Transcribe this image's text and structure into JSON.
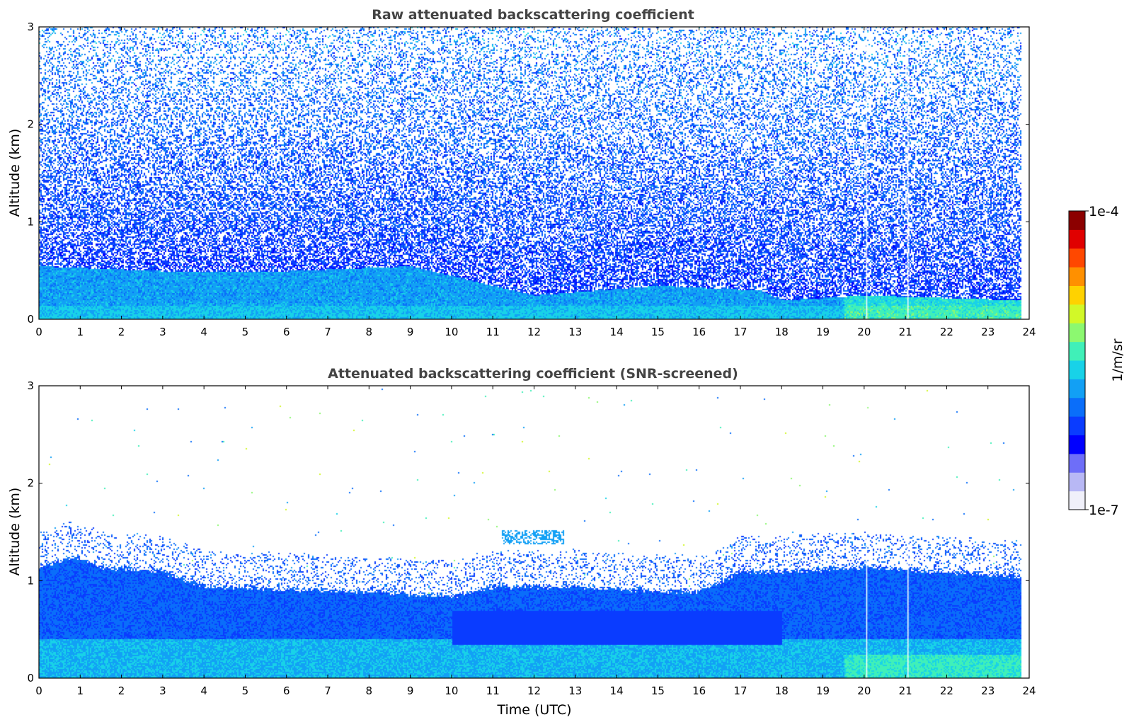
{
  "chart_data": [
    {
      "type": "heatmap",
      "id": "raw",
      "title": "Raw attenuated backscattering coefficient",
      "xlabel": "",
      "ylabel": "Altitude (km)",
      "xlim": [
        0,
        24
      ],
      "ylim": [
        0,
        3
      ],
      "xticks": [
        0,
        1,
        2,
        3,
        4,
        5,
        6,
        7,
        8,
        9,
        10,
        11,
        12,
        13,
        14,
        15,
        16,
        17,
        18,
        19,
        20,
        21,
        22,
        23,
        24
      ],
      "yticks": [
        0,
        1,
        2,
        3
      ],
      "data_end_hour": 23.8,
      "gap_hours": [
        20.05,
        21.05
      ],
      "layer_top_km": [
        [
          0,
          0.55
        ],
        [
          3,
          0.5
        ],
        [
          6,
          0.5
        ],
        [
          9,
          0.55
        ],
        [
          12,
          0.25
        ],
        [
          15,
          0.35
        ],
        [
          17.5,
          0.3
        ],
        [
          18,
          0.2
        ],
        [
          20,
          0.25
        ],
        [
          23.8,
          0.2
        ]
      ],
      "noise": "strong",
      "grid": false
    },
    {
      "type": "heatmap",
      "id": "screened",
      "title": "Attenuated backscattering coefficient (SNR-screened)",
      "xlabel": "Time (UTC)",
      "ylabel": "Altitude (km)",
      "xlim": [
        0,
        24
      ],
      "ylim": [
        0,
        3
      ],
      "xticks": [
        0,
        1,
        2,
        3,
        4,
        5,
        6,
        7,
        8,
        9,
        10,
        11,
        12,
        13,
        14,
        15,
        16,
        17,
        18,
        19,
        20,
        21,
        22,
        23,
        24
      ],
      "yticks": [
        0,
        1,
        2,
        3
      ],
      "data_end_hour": 23.8,
      "gap_hours": [
        20.05,
        21.05
      ],
      "boundary_layer_top_km": [
        [
          0,
          1.15
        ],
        [
          0.8,
          1.25
        ],
        [
          1.5,
          1.15
        ],
        [
          3,
          1.1
        ],
        [
          4,
          0.95
        ],
        [
          6,
          0.92
        ],
        [
          8,
          0.9
        ],
        [
          10,
          0.85
        ],
        [
          11,
          0.95
        ],
        [
          13,
          0.95
        ],
        [
          15,
          0.9
        ],
        [
          16,
          0.9
        ],
        [
          17,
          1.1
        ],
        [
          18,
          1.1
        ],
        [
          20,
          1.15
        ],
        [
          23.8,
          1.05
        ]
      ],
      "noise": "screened",
      "grid": false
    }
  ],
  "colorbar": {
    "label": "1/m/sr",
    "max_label": "1e-4",
    "min_label": "1e-7",
    "scale": "log",
    "colors": [
      "#f0f0fa",
      "#b8b8f5",
      "#6e6ef8",
      "#0000ff",
      "#0a3cff",
      "#0a6efa",
      "#12a0f5",
      "#18d2e8",
      "#40f0b8",
      "#8cf870",
      "#d2f828",
      "#ffd200",
      "#ff9000",
      "#ff4800",
      "#e00000",
      "#8c0000"
    ]
  }
}
